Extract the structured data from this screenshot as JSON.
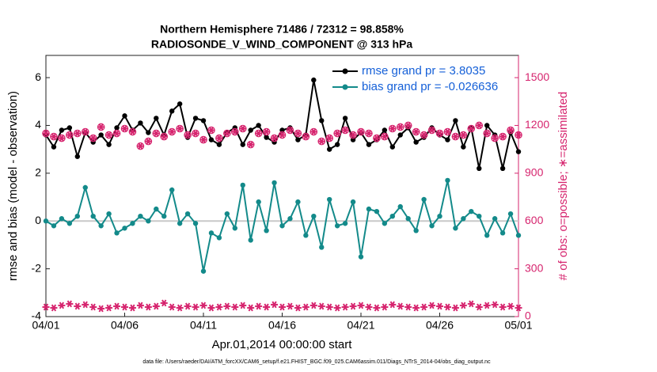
{
  "chart_data": {
    "type": "line",
    "title": "Northern Hemisphere 71486 / 72312 = 98.858%",
    "subtitle": "RADIOSONDE_V_WIND_COMPONENT @ 313 hPa",
    "ylabel": "rmse and bias (model - observation)",
    "y2label": "# of obs: o=possible; ∗=assimilated",
    "xlabel": "Apr.01,2014 00:00:00 start",
    "footnote": "data file: /Users/raeder/DAI/ATM_forcXX/CAM6_setup/f.e21.FHIST_BGC.f09_025.CAM6assim.011/Diags_NTrS_2014-04/obs_diag_output.nc",
    "x": [
      0,
      0.5,
      1,
      1.5,
      2,
      2.5,
      3,
      3.5,
      4,
      4.5,
      5,
      5.5,
      6,
      6.5,
      7,
      7.5,
      8,
      8.5,
      9,
      9.5,
      10,
      10.5,
      11,
      11.5,
      12,
      12.5,
      13,
      13.5,
      14,
      14.5,
      15,
      15.5,
      16,
      16.5,
      17,
      17.5,
      18,
      18.5,
      19,
      19.5,
      20,
      20.5,
      21,
      21.5,
      22,
      22.5,
      23,
      23.5,
      24,
      24.5,
      25,
      25.5,
      26,
      26.5,
      27,
      27.5,
      28,
      28.5,
      29,
      29.5,
      30
    ],
    "xlim": [
      0,
      30
    ],
    "xticks": [
      {
        "value": 0,
        "label": "04/01"
      },
      {
        "value": 5,
        "label": "04/06"
      },
      {
        "value": 10,
        "label": "04/11"
      },
      {
        "value": 15,
        "label": "04/16"
      },
      {
        "value": 20,
        "label": "04/21"
      },
      {
        "value": 25,
        "label": "04/26"
      },
      {
        "value": 30,
        "label": "05/01"
      }
    ],
    "ylim": [
      -4,
      6.93
    ],
    "yticks": [
      -4,
      -2,
      0,
      2,
      4,
      6
    ],
    "y2lim": [
      0,
      1639.5
    ],
    "y2ticks": [
      0,
      300,
      600,
      900,
      1200,
      1500
    ],
    "legend": "upper right",
    "series": [
      {
        "name": "rmse grand pr = 3.8035",
        "color": "#000000",
        "marker": "circle",
        "values": [
          3.6,
          3.1,
          3.8,
          3.9,
          2.7,
          3.7,
          3.3,
          3.6,
          3.2,
          3.9,
          4.4,
          3.8,
          4.1,
          3.7,
          4.3,
          3.6,
          4.6,
          4.9,
          3.5,
          4.3,
          4.2,
          3.4,
          3.2,
          3.7,
          3.9,
          3.2,
          3.8,
          4.0,
          3.5,
          3.3,
          3.8,
          3.9,
          3.4,
          3.6,
          5.9,
          4.2,
          3.0,
          3.2,
          4.3,
          3.4,
          3.7,
          3.2,
          3.4,
          3.8,
          3.1,
          3.6,
          3.9,
          3.3,
          3.5,
          3.9,
          3.6,
          3.4,
          4.2,
          3.1,
          3.9,
          2.2,
          4.0,
          3.6,
          2.2,
          3.7,
          2.9
        ]
      },
      {
        "name": "bias grand pr = -0.026636",
        "color": "#138a8a",
        "marker": "circle",
        "values": [
          0,
          -0.2,
          0.1,
          -0.1,
          0.2,
          1.4,
          0.2,
          -0.2,
          0.3,
          -0.5,
          -0.3,
          -0.1,
          0.2,
          0,
          0.5,
          0.2,
          1.3,
          -0.1,
          0.3,
          -0.1,
          -2.1,
          -0.5,
          -0.7,
          0.3,
          -0.3,
          1.5,
          -0.8,
          0.8,
          -0.4,
          1.6,
          -0.2,
          0.1,
          0.8,
          -0.6,
          0.2,
          -1.1,
          0.9,
          -0.2,
          -0.1,
          0.8,
          -1.5,
          0.5,
          0.4,
          -0.1,
          0.2,
          0.6,
          0.1,
          -0.4,
          0.9,
          -0.2,
          0.2,
          1.7,
          -0.3,
          0.1,
          0.4,
          0.2,
          -0.6,
          0.1,
          -0.5,
          0.3,
          -0.6
        ]
      },
      {
        "color": "#d6246e",
        "marker": "circle-star",
        "axis": "y2",
        "values": [
          1150,
          1130,
          1120,
          1140,
          1150,
          1160,
          1120,
          1190,
          1140,
          1150,
          1180,
          1160,
          1070,
          1100,
          1150,
          1130,
          1160,
          1180,
          1140,
          1150,
          1110,
          1170,
          1120,
          1150,
          1160,
          1180,
          1080,
          1150,
          1160,
          1120,
          1140,
          1170,
          1150,
          1130,
          1160,
          1100,
          1120,
          1150,
          1170,
          1140,
          1160,
          1150,
          1120,
          1130,
          1180,
          1190,
          1200,
          1160,
          1140,
          1170,
          1150,
          1160,
          1130,
          1140,
          1180,
          1200,
          1150,
          1120,
          1130,
          1170,
          1140
        ]
      },
      {
        "color": "#d6246e",
        "marker": "star",
        "axis": "y2",
        "values": [
          60,
          55,
          70,
          80,
          65,
          75,
          60,
          50,
          55,
          65,
          60,
          55,
          70,
          60,
          65,
          85,
          60,
          55,
          65,
          60,
          70,
          55,
          60,
          65,
          60,
          70,
          55,
          65,
          60,
          75,
          60,
          65,
          55,
          60,
          70,
          65,
          60,
          55,
          60,
          65,
          70,
          60,
          55,
          60,
          75,
          65,
          60,
          55,
          60,
          70,
          65,
          60,
          55,
          70,
          80,
          60,
          70,
          75,
          60,
          65,
          55
        ]
      }
    ],
    "zero_line_color": "#c8c8c8",
    "legend_text_color": "#1560d8"
  }
}
